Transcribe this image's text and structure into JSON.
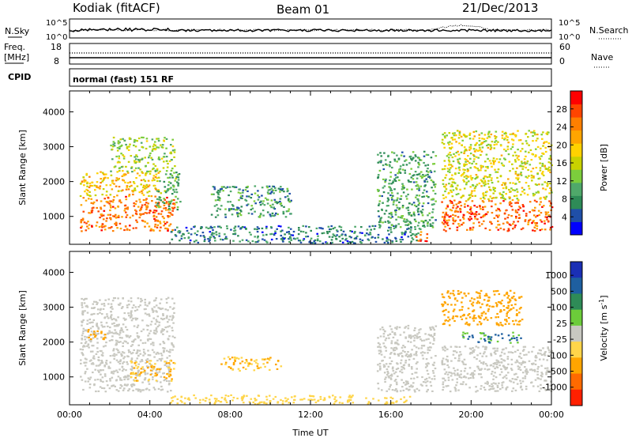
{
  "header": {
    "station": "Kodiak (fitACF)",
    "beam": "Beam 01",
    "date": "21/Dec/2013"
  },
  "top_panels": {
    "nsky_label": "N.Sky",
    "nsky_ticks": [
      "10^5",
      "10^0"
    ],
    "nsearch_label": "N.Search",
    "nsearch_ticks": [
      "10^5",
      "10^0"
    ],
    "freq_label": "Freq.",
    "freq_unit": "[MHz]",
    "freq_ticks": [
      "18",
      "8"
    ],
    "nave_label": "Nave",
    "nave_ticks": [
      "60",
      "0"
    ],
    "cpid_label": "CPID",
    "cpid_text": "normal (fast) 151 RF"
  },
  "colors": {
    "power_scale": [
      "#0000ff",
      "#1f4fa8",
      "#2e8b57",
      "#4fa86a",
      "#7ccd3c",
      "#c8d200",
      "#ffd200",
      "#ffa500",
      "#ff7f00",
      "#ff4500",
      "#ff0000"
    ],
    "velocity_scale": [
      "#1a2fb5",
      "#1e5fa0",
      "#2e8b57",
      "#6ccc3a",
      "#c8c8c0",
      "#ffd54a",
      "#ffa500",
      "#ff6a00",
      "#ff2000"
    ],
    "gray": "#c8c8c0"
  },
  "chart_data": [
    {
      "type": "heatmap",
      "panel": "power",
      "ylabel": "Slant Range [km]",
      "yticks": [
        "1000",
        "2000",
        "3000",
        "4000"
      ],
      "ylim": [
        200,
        4600
      ],
      "x_range": [
        "00:00",
        "24:00"
      ],
      "colorbar_label": "Power [dB]",
      "colorbar_ticks": [
        "4",
        "8",
        "12",
        "16",
        "20",
        "24",
        "28"
      ],
      "color_range": [
        0,
        32
      ],
      "regions": [
        {
          "x": [
            0.5,
            5.2
          ],
          "y": [
            600,
            1600
          ],
          "value": 26
        },
        {
          "x": [
            0.5,
            4.5
          ],
          "y": [
            1600,
            2300
          ],
          "value": 20
        },
        {
          "x": [
            2.0,
            5.2
          ],
          "y": [
            2300,
            3300
          ],
          "value": 14
        },
        {
          "x": [
            4.3,
            5.5
          ],
          "y": [
            1200,
            2300
          ],
          "value": 10
        },
        {
          "x": [
            7.0,
            11.0
          ],
          "y": [
            1000,
            1900
          ],
          "value": 8
        },
        {
          "x": [
            5.0,
            17.5
          ],
          "y": [
            250,
            750
          ],
          "value": 6
        },
        {
          "x": [
            15.3,
            18.2
          ],
          "y": [
            700,
            2900
          ],
          "value": 9
        },
        {
          "x": [
            17.2,
            17.8
          ],
          "y": [
            300,
            600
          ],
          "value": 28
        },
        {
          "x": [
            18.5,
            24.0
          ],
          "y": [
            600,
            1500
          ],
          "value": 27
        },
        {
          "x": [
            18.5,
            24.0
          ],
          "y": [
            1500,
            3500
          ],
          "value": 17
        }
      ]
    },
    {
      "type": "heatmap",
      "panel": "velocity",
      "ylabel": "Slant Range [km]",
      "yticks": [
        "1000",
        "2000",
        "3000",
        "4000"
      ],
      "ylim": [
        200,
        4600
      ],
      "x_range": [
        "00:00",
        "24:00"
      ],
      "xlabel": "Time UT",
      "xticks": [
        "00:00",
        "04:00",
        "08:00",
        "12:00",
        "16:00",
        "20:00",
        "00:00"
      ],
      "colorbar_label": "Velocity [m s^-1]",
      "colorbar_ticks": [
        "1000",
        "500",
        "100",
        "25",
        "-25",
        "-100",
        "-500",
        "-1000"
      ],
      "regions": [
        {
          "x": [
            0.5,
            5.0
          ],
          "y": [
            600,
            1700
          ],
          "value": 0
        },
        {
          "x": [
            0.5,
            5.2
          ],
          "y": [
            1700,
            3300
          ],
          "value": 0
        },
        {
          "x": [
            3.0,
            5.2
          ],
          "y": [
            900,
            1500
          ],
          "value": -100
        },
        {
          "x": [
            0.8,
            1.8
          ],
          "y": [
            2100,
            2400
          ],
          "value": -300
        },
        {
          "x": [
            7.5,
            10.5
          ],
          "y": [
            1200,
            1600
          ],
          "value": -100
        },
        {
          "x": [
            5.0,
            17.0
          ],
          "y": [
            250,
            500
          ],
          "value": -60
        },
        {
          "x": [
            15.3,
            18.2
          ],
          "y": [
            600,
            2500
          ],
          "value": 0
        },
        {
          "x": [
            18.5,
            24.0
          ],
          "y": [
            600,
            1900
          ],
          "value": 0
        },
        {
          "x": [
            18.5,
            22.5
          ],
          "y": [
            2500,
            3500
          ],
          "value": -400
        },
        {
          "x": [
            19.5,
            22.5
          ],
          "y": [
            2000,
            2300
          ],
          "value": 100
        }
      ]
    }
  ]
}
